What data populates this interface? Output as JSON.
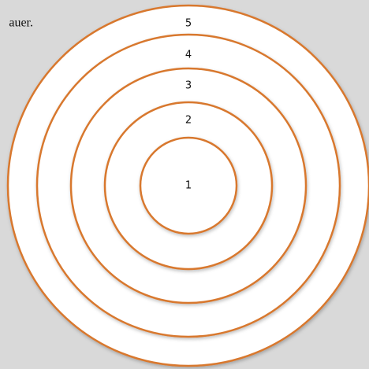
{
  "text_fragment": "auer.",
  "rings": [
    {
      "label": "1"
    },
    {
      "label": "2"
    },
    {
      "label": "3"
    },
    {
      "label": "4"
    },
    {
      "label": "5"
    }
  ]
}
